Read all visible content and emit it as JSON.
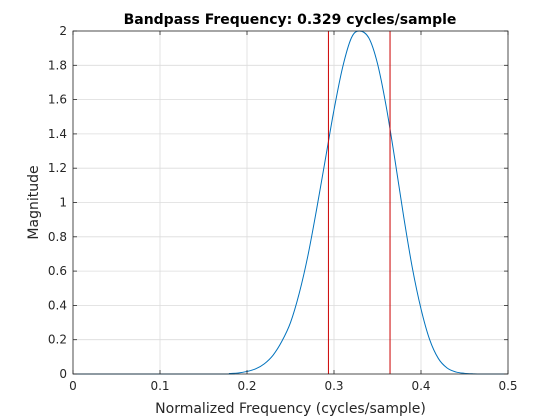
{
  "chart_data": {
    "type": "line",
    "title": "Bandpass Frequency: 0.329 cycles/sample",
    "xlabel": "Normalized Frequency (cycles/sample)",
    "ylabel": "Magnitude",
    "xlim": [
      0,
      0.5
    ],
    "ylim": [
      0,
      2
    ],
    "xticks": [
      0,
      0.1,
      0.2,
      0.3,
      0.4,
      0.5
    ],
    "xtick_labels": [
      "0",
      "0.1",
      "0.2",
      "0.3",
      "0.4",
      "0.5"
    ],
    "yticks": [
      0,
      0.2,
      0.4,
      0.6,
      0.8,
      1,
      1.2,
      1.4,
      1.6,
      1.8,
      2
    ],
    "ytick_labels": [
      "0",
      "0.2",
      "0.4",
      "0.6",
      "0.8",
      "1",
      "1.2",
      "1.4",
      "1.6",
      "1.8",
      "2"
    ],
    "grid": true,
    "series": [
      {
        "color": "#0072bd",
        "x": [
          0,
          0.17,
          0.18,
          0.19,
          0.2,
          0.21,
          0.22,
          0.23,
          0.24,
          0.25,
          0.26,
          0.27,
          0.28,
          0.29,
          0.3,
          0.31,
          0.32,
          0.329,
          0.34,
          0.35,
          0.36,
          0.37,
          0.38,
          0.39,
          0.4,
          0.41,
          0.42,
          0.43,
          0.44,
          0.45,
          0.46,
          0.47,
          0.5
        ],
        "y": [
          0,
          0,
          0.003,
          0.006,
          0.015,
          0.03,
          0.06,
          0.11,
          0.19,
          0.3,
          0.47,
          0.69,
          0.96,
          1.25,
          1.54,
          1.79,
          1.96,
          2.0,
          1.96,
          1.81,
          1.56,
          1.25,
          0.92,
          0.62,
          0.38,
          0.2,
          0.09,
          0.035,
          0.012,
          0.004,
          0.001,
          0,
          0
        ]
      }
    ],
    "vlines": [
      {
        "x": 0.2936,
        "color": "#cc0000"
      },
      {
        "x": 0.3644,
        "color": "#cc0000"
      }
    ]
  }
}
